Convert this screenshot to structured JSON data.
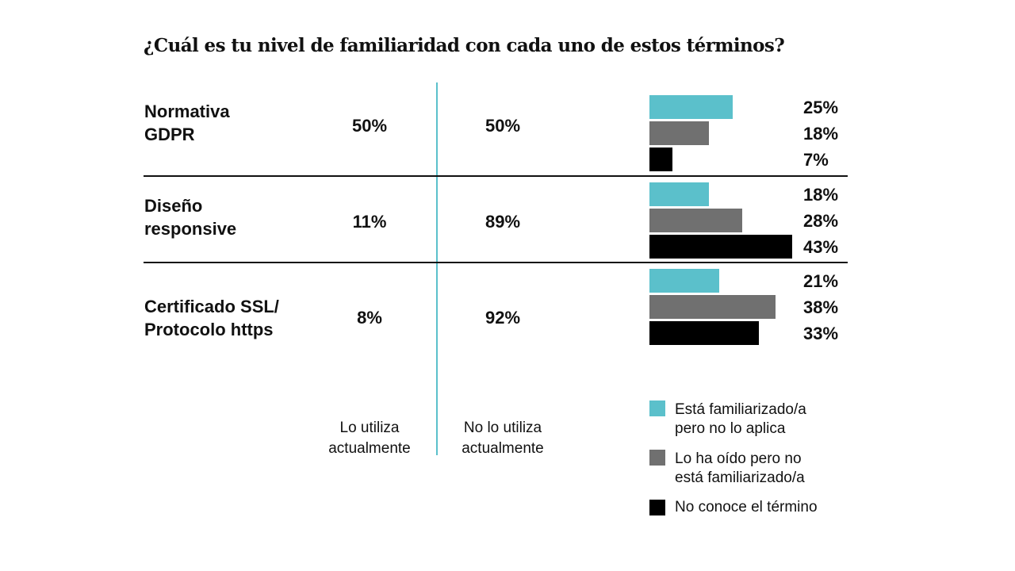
{
  "title": "¿Cuál es tu nivel de familiaridad con cada uno de estos términos?",
  "columns": {
    "uses": "Lo utiliza\nactualmente",
    "not_uses": "No lo utiliza\nactualmente"
  },
  "colors": {
    "familiar": "#5bc0cb",
    "heard": "#707070",
    "unknown": "#000000",
    "divider": "#5bc0cb"
  },
  "rows": [
    {
      "term": "Normativa\nGDPR",
      "uses": "50%",
      "not_uses": "50%",
      "bars": [
        "25%",
        "18%",
        "7%"
      ]
    },
    {
      "term": "Diseño\nresponsive",
      "uses": "11%",
      "not_uses": "89%",
      "bars": [
        "18%",
        "28%",
        "43%"
      ]
    },
    {
      "term": "Certificado SSL/\nProtocolo https",
      "uses": "8%",
      "not_uses": "92%",
      "bars": [
        "21%",
        "38%",
        "33%"
      ]
    }
  ],
  "legend": [
    {
      "label": "Está familiarizado/a\npero no lo aplica",
      "color": "#5bc0cb"
    },
    {
      "label": "Lo ha oído pero no\nestá familiarizado/a",
      "color": "#707070"
    },
    {
      "label": "No conoce el término",
      "color": "#000000"
    }
  ],
  "chart_data": {
    "type": "bar",
    "orientation": "horizontal",
    "title": "¿Cuál es tu nivel de familiaridad con cada uno de estos términos?",
    "categories": [
      "Normativa GDPR",
      "Diseño responsive",
      "Certificado SSL/ Protocolo https"
    ],
    "series": [
      {
        "name": "Está familiarizado/a pero no lo aplica",
        "values": [
          25,
          18,
          21
        ]
      },
      {
        "name": "Lo ha oído pero no está familiarizado/a",
        "values": [
          18,
          28,
          38
        ]
      },
      {
        "name": "No conoce el término",
        "values": [
          7,
          43,
          33
        ]
      }
    ],
    "table": {
      "Lo utiliza actualmente": [
        50,
        11,
        8
      ],
      "No lo utiliza actualmente": [
        50,
        89,
        92
      ]
    },
    "unit": "%",
    "legend": "bottom-right",
    "grid": false
  }
}
